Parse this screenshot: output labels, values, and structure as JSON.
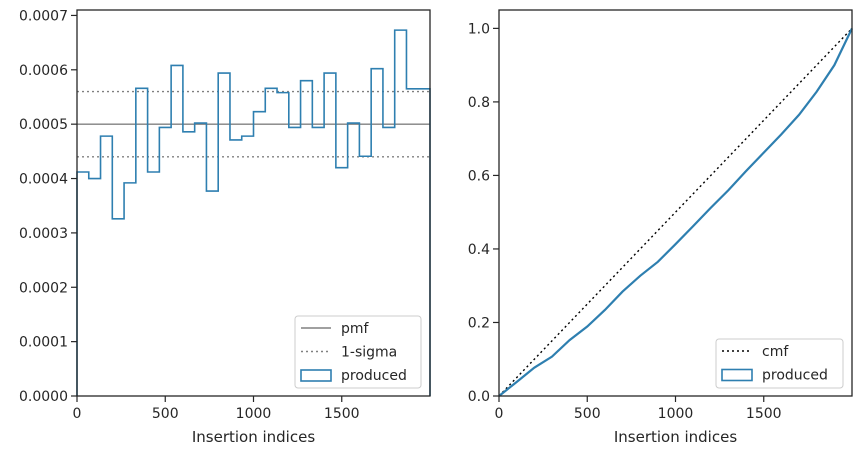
{
  "chart_data": [
    {
      "type": "step-histogram",
      "xlabel": "Insertion indices",
      "ylabel": "",
      "xlim": [
        0,
        2000
      ],
      "ylim": [
        0,
        0.00071
      ],
      "xticks": [
        0,
        500,
        1000,
        1500
      ],
      "xtick_labels": [
        "0",
        "500",
        "1000",
        "1500"
      ],
      "yticks": [
        0,
        0.0001,
        0.0002,
        0.0003,
        0.0004,
        0.0005,
        0.0006,
        0.0007
      ],
      "ytick_labels": [
        "0.0000",
        "0.0001",
        "0.0002",
        "0.0003",
        "0.0004",
        "0.0005",
        "0.0006",
        "0.0007"
      ],
      "grid": false,
      "legend_position": "lower right",
      "reference_lines": [
        {
          "name": "pmf",
          "value": 0.0005,
          "style": "solid",
          "color": "#808080"
        },
        {
          "name": "1-sigma",
          "values": [
            0.00044,
            0.00056
          ],
          "style": "dotted",
          "color": "#808080"
        }
      ],
      "series": [
        {
          "name": "produced",
          "color": "#2e7fb0",
          "bin_width": 66.67,
          "values": [
            0.000412,
            0.0004,
            0.000478,
            0.000326,
            0.000392,
            0.000566,
            0.000412,
            0.000494,
            0.000608,
            0.000486,
            0.000502,
            0.000377,
            0.000594,
            0.000471,
            0.000478,
            0.000523,
            0.000566,
            0.000558,
            0.000494,
            0.00058,
            0.000494,
            0.000594,
            0.00042,
            0.000502,
            0.000441,
            0.000602,
            0.000494,
            0.000673,
            0.000565,
            0.000565
          ]
        }
      ],
      "legend": [
        {
          "label": "pmf",
          "style": "solid-line"
        },
        {
          "label": "1-sigma",
          "style": "dotted-line"
        },
        {
          "label": "produced",
          "style": "box"
        }
      ]
    },
    {
      "type": "line",
      "xlabel": "Insertion indices",
      "ylabel": "",
      "xlim": [
        0,
        2000
      ],
      "ylim": [
        0,
        1.05
      ],
      "xticks": [
        0,
        500,
        1000,
        1500
      ],
      "xtick_labels": [
        "0",
        "500",
        "1000",
        "1500"
      ],
      "yticks": [
        0,
        0.2,
        0.4,
        0.6,
        0.8,
        1.0
      ],
      "ytick_labels": [
        "0.0",
        "0.2",
        "0.4",
        "0.6",
        "0.8",
        "1.0"
      ],
      "grid": false,
      "legend_position": "lower right",
      "series": [
        {
          "name": "cmf",
          "style": "dotted",
          "color": "#000000",
          "x": [
            0,
            2000
          ],
          "y": [
            0,
            1.0
          ]
        },
        {
          "name": "produced",
          "style": "solid",
          "color": "#2e7fb0",
          "x": [
            0,
            100,
            200,
            300,
            400,
            500,
            600,
            700,
            800,
            900,
            1000,
            1100,
            1200,
            1300,
            1400,
            1500,
            1600,
            1700,
            1800,
            1900,
            2000
          ],
          "y": [
            0,
            0.038,
            0.077,
            0.107,
            0.152,
            0.189,
            0.234,
            0.284,
            0.327,
            0.365,
            0.413,
            0.462,
            0.512,
            0.56,
            0.612,
            0.662,
            0.712,
            0.765,
            0.828,
            0.9,
            1.0
          ]
        }
      ],
      "legend": [
        {
          "label": "cmf",
          "style": "dotted-line"
        },
        {
          "label": "produced",
          "style": "box"
        }
      ]
    }
  ]
}
